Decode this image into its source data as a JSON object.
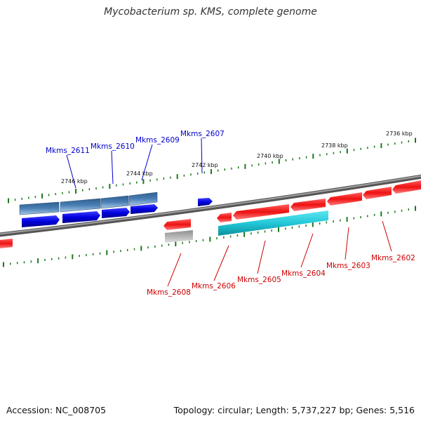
{
  "title": "Mycobacterium sp. KMS, complete genome",
  "footer": {
    "accession": "Accession: NC_008705",
    "summary": "Topology: circular; Length: 5,737,227 bp; Genes: 5,516"
  },
  "colors": {
    "backbone": "#808080",
    "tick": "#1a7a1a",
    "forward_gene": "#0000e0",
    "forward_gene_alt": "#4a7fb5",
    "reverse_gene": "#ee1111",
    "cyan_gene": "#22c8d8",
    "grey_gene": "#b4b4b4",
    "forward_label": "#0000cc",
    "reverse_label": "#cc0000"
  },
  "scale": {
    "unit": "kbp",
    "labels": [
      "2736 kbp",
      "2738 kbp",
      "2740 kbp",
      "2742 kbp",
      "2744 kbp",
      "2746 kbp"
    ]
  },
  "genes": {
    "forward": [
      "Mkms_2611",
      "Mkms_2610",
      "Mkms_2609",
      "Mkms_2607"
    ],
    "reverse": [
      "Mkms_2608",
      "Mkms_2606",
      "Mkms_2605",
      "Mkms_2604",
      "Mkms_2603",
      "Mkms_2602"
    ]
  }
}
